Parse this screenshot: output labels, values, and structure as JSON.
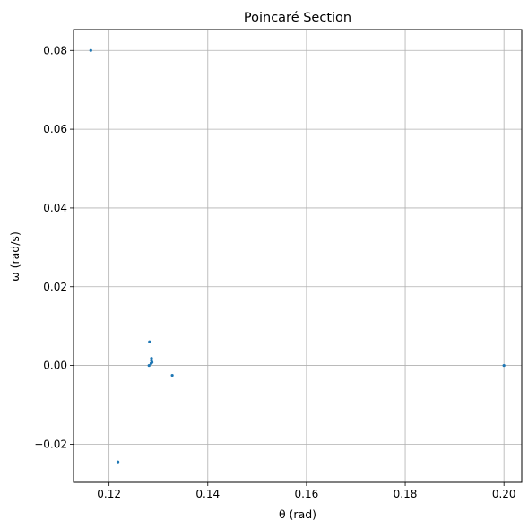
{
  "chart_data": {
    "type": "scatter",
    "title": "Poincaré Section",
    "xlabel": "θ (rad)",
    "ylabel": "ω (rad/s)",
    "xlim": [
      0.1128,
      0.2036
    ],
    "ylim": [
      -0.0297,
      0.0853
    ],
    "xticks": [
      0.12,
      0.14,
      0.16,
      0.18,
      0.2
    ],
    "xtick_labels": [
      "0.12",
      "0.14",
      "0.16",
      "0.18",
      "0.20"
    ],
    "yticks": [
      -0.02,
      0.0,
      0.02,
      0.04,
      0.06,
      0.08
    ],
    "ytick_labels": [
      "−0.02",
      "0.00",
      "0.02",
      "0.04",
      "0.06",
      "0.08"
    ],
    "grid": true,
    "marker_color": "#1f77b4",
    "series": [
      {
        "points": [
          {
            "x": 0.1163,
            "y": 0.08
          },
          {
            "x": 0.2,
            "y": 0.0
          },
          {
            "x": 0.1282,
            "y": 0.006
          },
          {
            "x": 0.1286,
            "y": 0.0018
          },
          {
            "x": 0.1286,
            "y": 0.0012
          },
          {
            "x": 0.1287,
            "y": 0.0008
          },
          {
            "x": 0.1285,
            "y": 0.0005
          },
          {
            "x": 0.1281,
            "y": 0.0
          },
          {
            "x": 0.1328,
            "y": -0.0025
          },
          {
            "x": 0.1218,
            "y": -0.0245
          }
        ]
      }
    ]
  }
}
